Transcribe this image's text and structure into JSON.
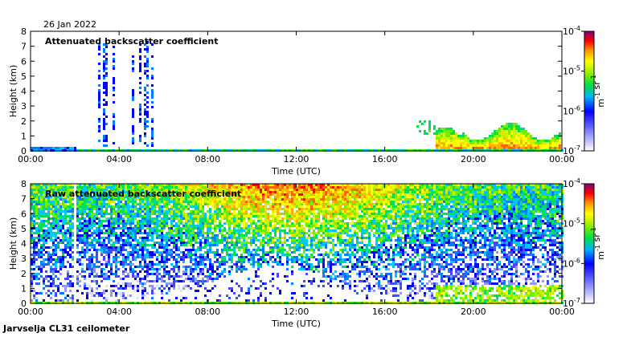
{
  "page": {
    "date_label": "26 Jan 2022",
    "footer_label": "Jarvselja CL31 ceilometer"
  },
  "chart_data": [
    {
      "type": "heatmap",
      "title": "Attenuated backscatter coefficient",
      "xlabel": "Time (UTC)",
      "ylabel": "Height (km)",
      "xlim": [
        0,
        24
      ],
      "ylim": [
        0,
        8
      ],
      "x_ticks": [
        "00:00",
        "04:00",
        "08:00",
        "12:00",
        "16:00",
        "20:00",
        "00:00"
      ],
      "y_ticks": [
        "0",
        "1",
        "2",
        "3",
        "4",
        "5",
        "6",
        "7",
        "8"
      ],
      "colorbar": {
        "scale": "log",
        "range": [
          1e-07,
          0.0001
        ],
        "ticks": [
          "10-7",
          "10-6",
          "10-5",
          "10-4"
        ],
        "label": "m-1 sr-1"
      }
    },
    {
      "type": "heatmap",
      "title": "Raw attenuated backscatter coefficient",
      "xlabel": "Time (UTC)",
      "ylabel": "Height (km)",
      "xlim": [
        0,
        24
      ],
      "ylim": [
        0,
        8
      ],
      "x_ticks": [
        "00:00",
        "04:00",
        "08:00",
        "12:00",
        "16:00",
        "20:00",
        "00:00"
      ],
      "y_ticks": [
        "0",
        "1",
        "2",
        "3",
        "4",
        "5",
        "6",
        "7",
        "8"
      ],
      "colorbar": {
        "scale": "log",
        "range": [
          1e-07,
          0.0001
        ],
        "ticks": [
          "10-7",
          "10-6",
          "10-5",
          "10-4"
        ],
        "label": "m-1 sr-1"
      }
    }
  ]
}
